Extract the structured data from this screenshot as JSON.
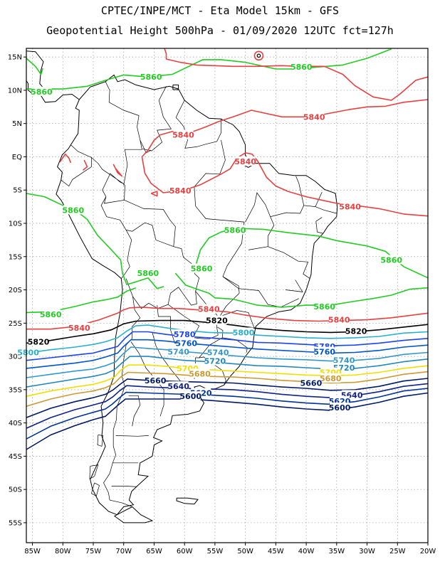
{
  "title_line1": "CPTEC/INPE/MCT -  Eta Model 15km - GFS",
  "title_line2": "Geopotential Height 500hPa - 01/09/2020 12UTC fct=127h",
  "colors": {
    "5860": "#22cc22",
    "5840": "#e84040",
    "5820": "#000000",
    "5800": "#2ab0cc",
    "5780": "#1a44ee",
    "5760": "#0055cc",
    "5740": "#3399cc",
    "5720": "#2288bb",
    "5700": "#f0e000",
    "5680": "#cc9933",
    "5660": "#001a66",
    "5640": "#112288",
    "5620": "#003399",
    "5600": "#001a66"
  },
  "lat_ticks": [
    "15N",
    "10N",
    "5N",
    "EQ",
    "5S",
    "10S",
    "15S",
    "20S",
    "25S",
    "30S",
    "35S",
    "40S",
    "45S",
    "50S",
    "55S"
  ],
  "lon_ticks": [
    "85W",
    "80W",
    "75W",
    "70W",
    "65W",
    "60W",
    "55W",
    "50W",
    "45W",
    "40W",
    "35W",
    "30W",
    "25W",
    "20W"
  ],
  "contour_labels": [
    {
      "text": "5860",
      "level": "5860",
      "lon": -65.5,
      "lat": 12.0
    },
    {
      "text": "5860",
      "level": "5860",
      "lon": -40.8,
      "lat": 13.5
    },
    {
      "text": "5860",
      "level": "5860",
      "lon": -83.5,
      "lat": 9.8
    },
    {
      "text": "5860",
      "level": "5860",
      "lon": -78.3,
      "lat": -8.0
    },
    {
      "text": "5860",
      "level": "5860",
      "lon": -51.7,
      "lat": -11.0
    },
    {
      "text": "5860",
      "level": "5860",
      "lon": -26.0,
      "lat": -15.5
    },
    {
      "text": "5860",
      "level": "5860",
      "lon": -66.0,
      "lat": -17.5
    },
    {
      "text": "5860",
      "level": "5860",
      "lon": -57.2,
      "lat": -16.8
    },
    {
      "text": "5860",
      "level": "5860",
      "lon": -82.0,
      "lat": -23.7
    },
    {
      "text": "5860",
      "level": "5860",
      "lon": -37.0,
      "lat": -22.5
    },
    {
      "text": "5840",
      "level": "5840",
      "lon": -38.7,
      "lat": 6.0
    },
    {
      "text": "5840",
      "level": "5840",
      "lon": -60.2,
      "lat": 3.3
    },
    {
      "text": "5840",
      "level": "5840",
      "lon": -50.0,
      "lat": -0.7
    },
    {
      "text": "5840",
      "level": "5840",
      "lon": -60.7,
      "lat": -5.1
    },
    {
      "text": "5840",
      "level": "5840",
      "lon": -32.8,
      "lat": -7.5
    },
    {
      "text": "5840",
      "level": "5840",
      "lon": -56.0,
      "lat": -22.9
    },
    {
      "text": "5840",
      "level": "5840",
      "lon": -34.6,
      "lat": -24.5
    },
    {
      "text": "5840",
      "level": "5840",
      "lon": -77.3,
      "lat": -25.7
    },
    {
      "text": "5820",
      "level": "5820",
      "lon": -54.7,
      "lat": -24.6
    },
    {
      "text": "5820",
      "level": "5820",
      "lon": -31.8,
      "lat": -26.2
    },
    {
      "text": "5820",
      "level": "5820",
      "lon": -84.0,
      "lat": -27.8
    },
    {
      "text": "5800",
      "level": "5800",
      "lon": -50.3,
      "lat": -26.4
    },
    {
      "text": "5800",
      "level": "5800",
      "lon": -85.7,
      "lat": -29.4
    },
    {
      "text": "5780",
      "level": "5780",
      "lon": -60.0,
      "lat": -26.7
    },
    {
      "text": "5780",
      "level": "5780",
      "lon": -37.0,
      "lat": -28.5
    },
    {
      "text": "5760",
      "level": "5760",
      "lon": -59.7,
      "lat": -28.0
    },
    {
      "text": "5760",
      "level": "5760",
      "lon": -37.0,
      "lat": -29.3
    },
    {
      "text": "5740",
      "level": "5740",
      "lon": -61.0,
      "lat": -29.3
    },
    {
      "text": "5740",
      "level": "5740",
      "lon": -54.5,
      "lat": -29.4
    },
    {
      "text": "5740",
      "level": "5740",
      "lon": -33.8,
      "lat": -30.6
    },
    {
      "text": "5720",
      "level": "5720",
      "lon": -55.0,
      "lat": -30.7
    },
    {
      "text": "5720",
      "level": "5720",
      "lon": -33.8,
      "lat": -31.7
    },
    {
      "text": "5700",
      "level": "5700",
      "lon": -59.5,
      "lat": -31.8
    },
    {
      "text": "5700",
      "level": "5700",
      "lon": -36.0,
      "lat": -32.4
    },
    {
      "text": "5680",
      "level": "5680",
      "lon": -57.5,
      "lat": -32.6
    },
    {
      "text": "5680",
      "level": "5680",
      "lon": -36.0,
      "lat": -33.3
    },
    {
      "text": "5660",
      "level": "5660",
      "lon": -64.8,
      "lat": -33.6
    },
    {
      "text": "5660",
      "level": "5660",
      "lon": -39.2,
      "lat": -34.0
    },
    {
      "text": "5640",
      "level": "5640",
      "lon": -61.0,
      "lat": -34.5
    },
    {
      "text": "5640",
      "level": "5640",
      "lon": -32.5,
      "lat": -35.8
    },
    {
      "text": "5620",
      "level": "5620",
      "lon": -57.3,
      "lat": -35.5
    },
    {
      "text": "5620",
      "level": "5620",
      "lon": -34.5,
      "lat": -36.7
    },
    {
      "text": "5600",
      "level": "5600",
      "lon": -59.0,
      "lat": -36.0
    },
    {
      "text": "5600",
      "level": "5600",
      "lon": -34.5,
      "lat": -37.7
    }
  ]
}
